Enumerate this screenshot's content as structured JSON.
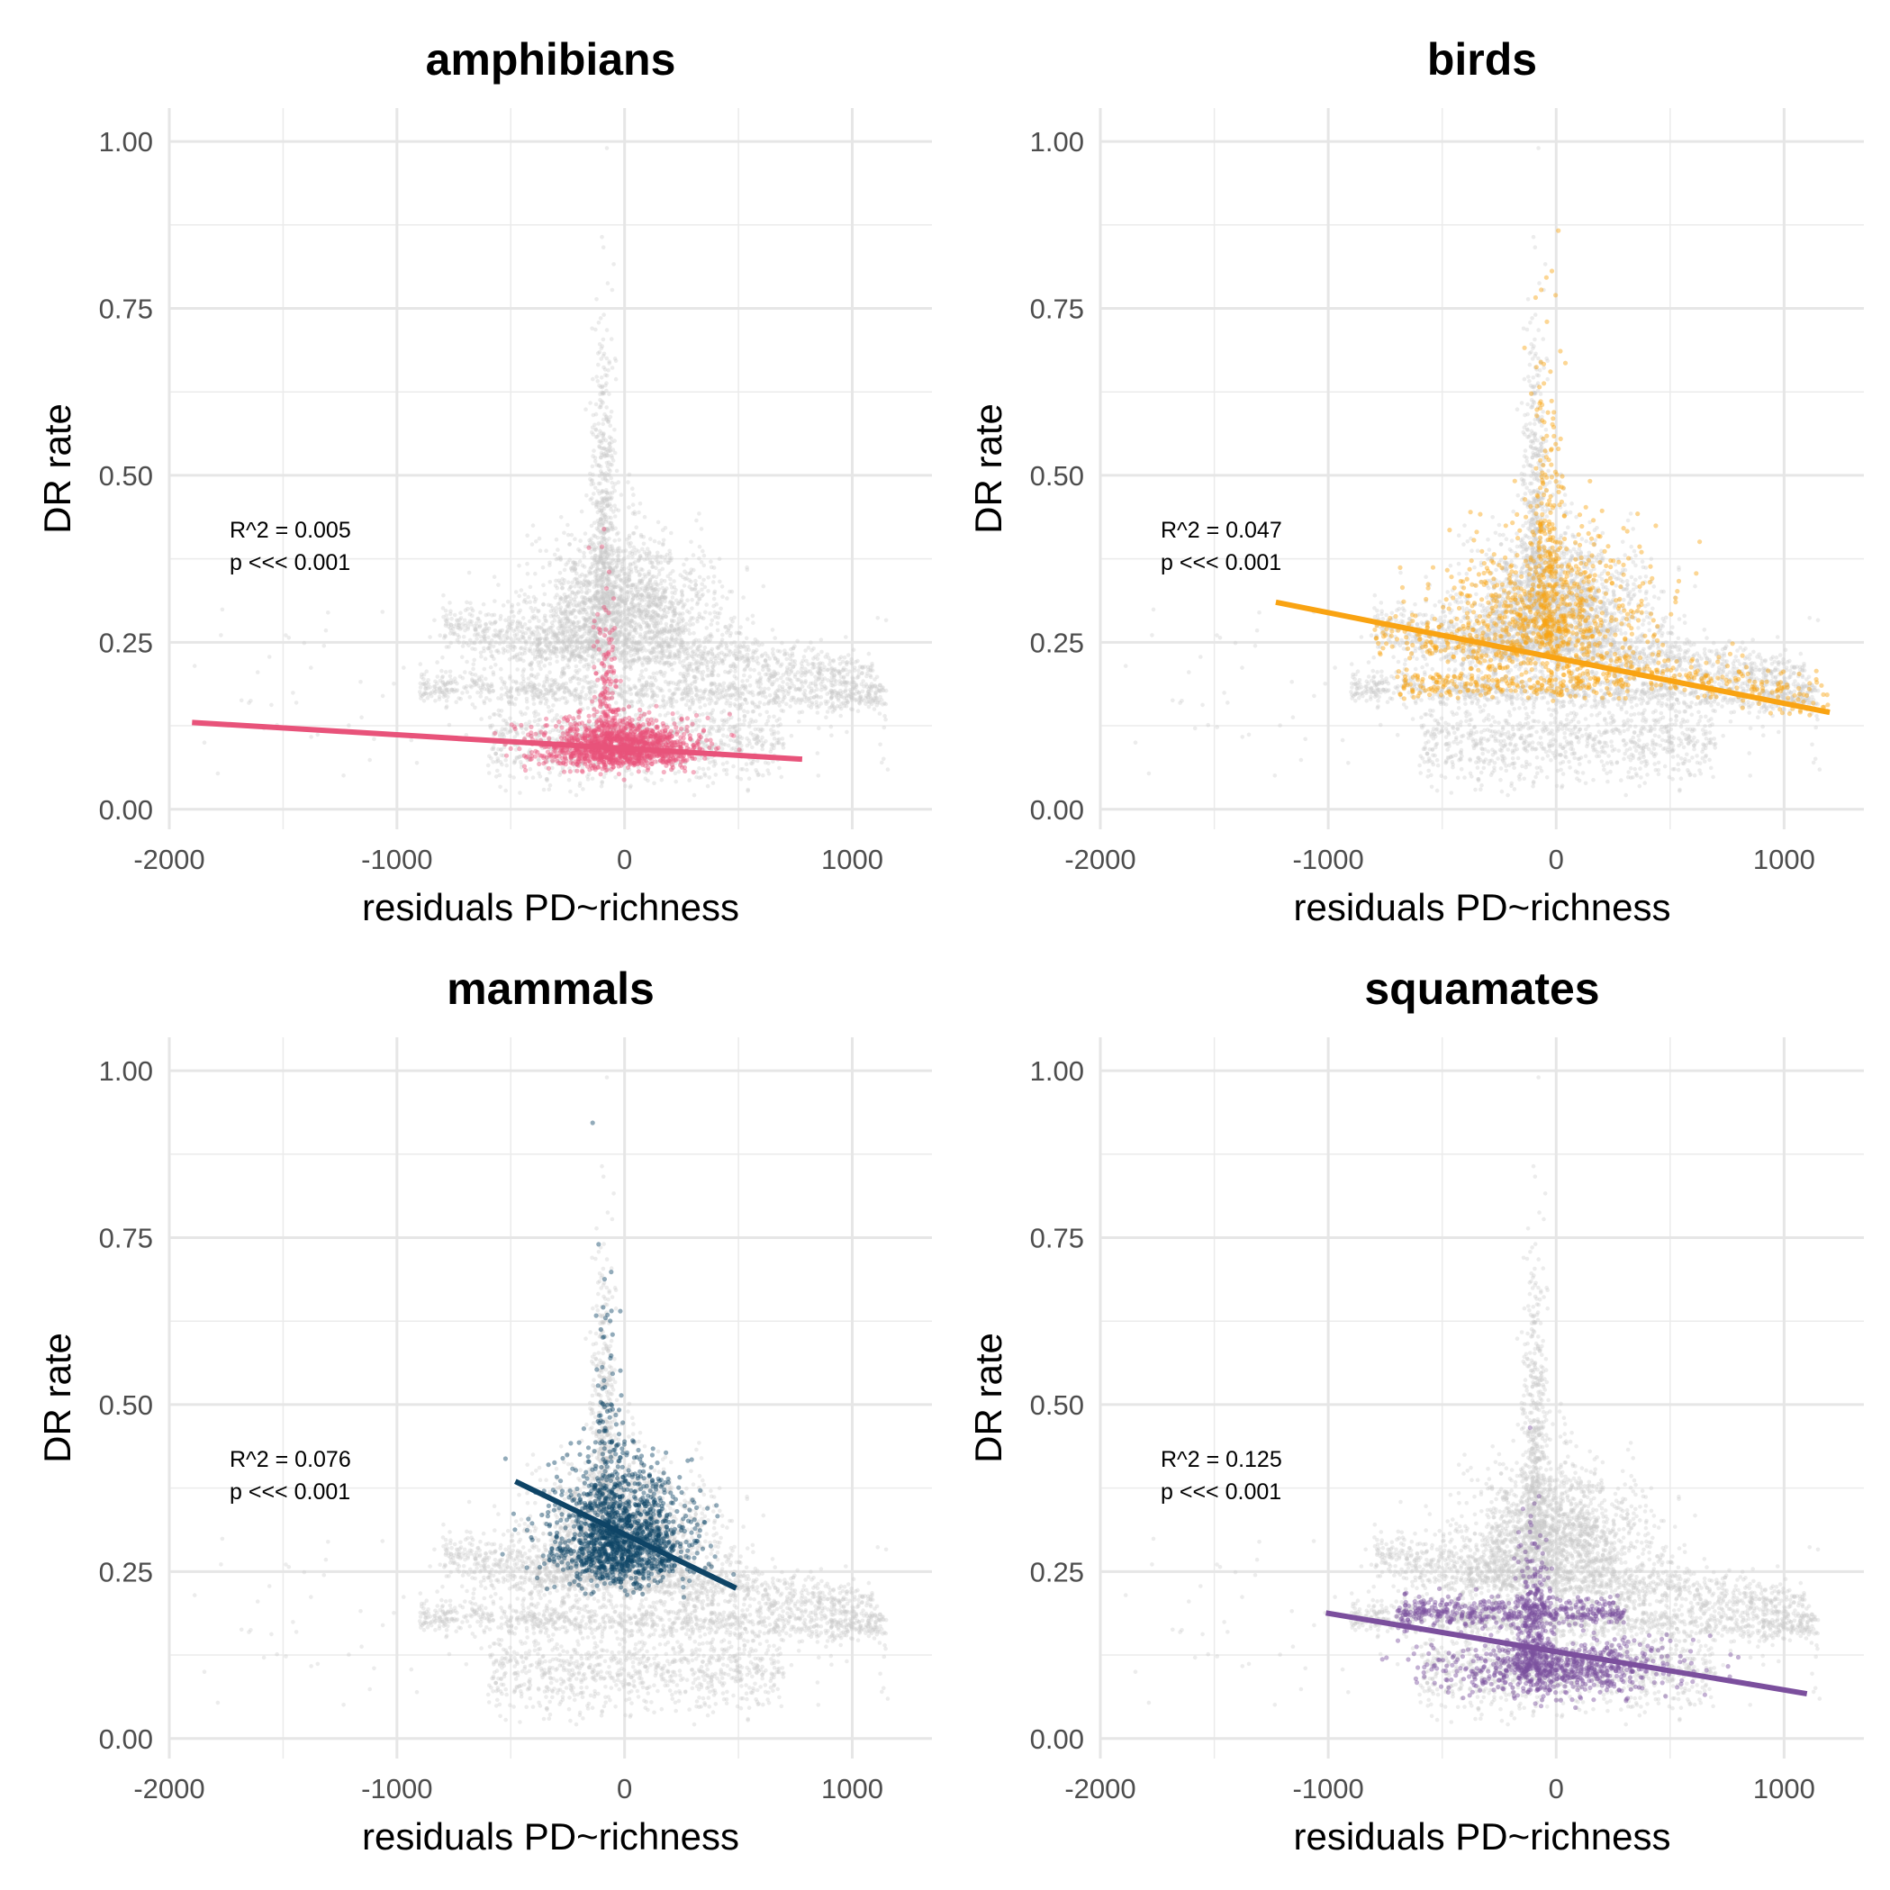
{
  "chart_data": [
    {
      "type": "scatter",
      "title": "amphibians",
      "xlabel": "residuals PD~richness",
      "ylabel": "DR rate",
      "xlim": [
        -2000,
        1350
      ],
      "ylim": [
        -0.03,
        1.05
      ],
      "xticks": [
        -2000,
        -1000,
        0,
        1000
      ],
      "xtick_labels": [
        "-2000",
        "-1000",
        "0",
        "1000"
      ],
      "yticks": [
        0,
        0.25,
        0.5,
        0.75,
        1
      ],
      "ytick_labels": [
        "0.00",
        "0.25",
        "0.50",
        "0.75",
        "1.00"
      ],
      "highlight_color": "#e8537a",
      "background_color": "#c8c8c8",
      "annotation": [
        "R^2 = 0.005",
        "p <<< 0.001"
      ],
      "fit_line": [
        [
          -1900,
          0.13
        ],
        [
          780,
          0.075
        ]
      ],
      "series_summary": {
        "center_x": -50,
        "center_y": 0.09,
        "spread_x": 170,
        "spread_y": 0.035
      }
    },
    {
      "type": "scatter",
      "title": "birds",
      "xlabel": "residuals PD~richness",
      "ylabel": "DR rate",
      "xlim": [
        -2000,
        1350
      ],
      "ylim": [
        -0.03,
        1.05
      ],
      "xticks": [
        -2000,
        -1000,
        0,
        1000
      ],
      "xtick_labels": [
        "-2000",
        "-1000",
        "0",
        "1000"
      ],
      "yticks": [
        0,
        0.25,
        0.5,
        0.75,
        1
      ],
      "ytick_labels": [
        "0.00",
        "0.25",
        "0.50",
        "0.75",
        "1.00"
      ],
      "highlight_color": "#f9a312",
      "background_color": "#c8c8c8",
      "annotation": [
        "R^2 = 0.047",
        "p <<< 0.001"
      ],
      "fit_line": [
        [
          -1230,
          0.31
        ],
        [
          1200,
          0.145
        ]
      ],
      "series_summary": {
        "center_x": -80,
        "center_y": 0.24,
        "spread_x": 380,
        "spread_y": 0.06
      }
    },
    {
      "type": "scatter",
      "title": "mammals",
      "xlabel": "residuals PD~richness",
      "ylabel": "DR rate",
      "xlim": [
        -2000,
        1350
      ],
      "ylim": [
        -0.03,
        1.05
      ],
      "xticks": [
        -2000,
        -1000,
        0,
        1000
      ],
      "xtick_labels": [
        "-2000",
        "-1000",
        "0",
        "1000"
      ],
      "yticks": [
        0,
        0.25,
        0.5,
        0.75,
        1
      ],
      "ytick_labels": [
        "0.00",
        "0.25",
        "0.50",
        "0.75",
        "1.00"
      ],
      "highlight_color": "#0e4466",
      "background_color": "#c8c8c8",
      "annotation": [
        "R^2 = 0.076",
        "p <<< 0.001"
      ],
      "fit_line": [
        [
          -480,
          0.385
        ],
        [
          490,
          0.225
        ]
      ],
      "series_summary": {
        "center_x": -20,
        "center_y": 0.29,
        "spread_x": 160,
        "spread_y": 0.05
      }
    },
    {
      "type": "scatter",
      "title": "squamates",
      "xlabel": "residuals PD~richness",
      "ylabel": "DR rate",
      "xlim": [
        -2000,
        1350
      ],
      "ylim": [
        -0.03,
        1.05
      ],
      "xticks": [
        -2000,
        -1000,
        0,
        1000
      ],
      "xtick_labels": [
        "-2000",
        "-1000",
        "0",
        "1000"
      ],
      "yticks": [
        0,
        0.25,
        0.5,
        0.75,
        1
      ],
      "ytick_labels": [
        "0.00",
        "0.25",
        "0.50",
        "0.75",
        "1.00"
      ],
      "highlight_color": "#7b4f9d",
      "background_color": "#c8c8c8",
      "annotation": [
        "R^2 = 0.125",
        "p <<< 0.001"
      ],
      "fit_line": [
        [
          -1010,
          0.188
        ],
        [
          1100,
          0.067
        ]
      ],
      "series_summary": {
        "center_x": -30,
        "center_y": 0.12,
        "spread_x": 280,
        "spread_y": 0.035
      }
    }
  ]
}
